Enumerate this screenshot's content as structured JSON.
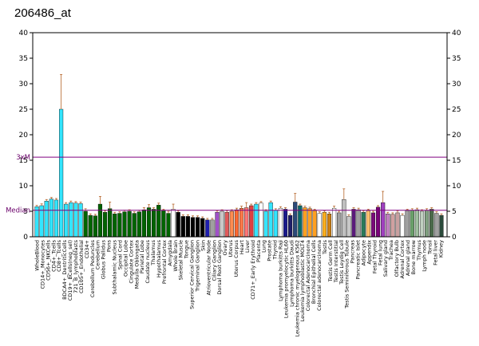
{
  "chart_data": {
    "type": "bar",
    "title": "206486_at",
    "ylim": [
      0,
      40
    ],
    "yticks": [
      0,
      5,
      10,
      15,
      20,
      25,
      30,
      35,
      40
    ],
    "reference_lines": [
      {
        "label": "3xM",
        "value": 15.6,
        "color": "#800080"
      },
      {
        "label": "Median",
        "value": 5.2,
        "color": "#800080"
      }
    ],
    "labeled_categories": [
      "WholeBlood",
      "CD14+_Monocytes",
      "CD56+_NKCells",
      "CD4+_Tcells",
      "CD8+_Tcells",
      "BDCA4+_DentriticCells",
      "CD19+_BCells(neg_sel)",
      "721_B_lymphoblasts",
      "CD105+_Endothelial",
      "CD34+",
      "Cerebellum Peduncles",
      "Cerebellum",
      "Globus Pallidus",
      "Pons",
      "Subthalamic Nucleus",
      "Spinal Cord",
      "Occipital Lobe",
      "Cingulate Cortex",
      "Medulla Oblongata",
      "Parietal Lobe",
      "Caudate nucleus",
      "Thalamus",
      "Hypothalamus",
      "Prefrontal Cortex",
      "Amygdala",
      "Whole Brain",
      "Skeletal Muscle",
      "Tongue",
      "Superior Cervical Ganglion",
      "Trigeminal Ganglion",
      "Skin",
      "Atrioventricular Node",
      "Ciliary Ganglion",
      "Dorsal Root Ganglion",
      "Ovary",
      "Uterus",
      "Uterus Corpus",
      "Heart",
      "Liver",
      "CD71+_Early Erythroid",
      "Placenta",
      "Lung",
      "Prostate",
      "Thyroid",
      "Lymphoma burkitts Raji",
      "Leukemia promyelocytic HL60",
      "Lymphoma burkitts Daudi",
      "Leukemia chronic myelogenous K562",
      "Leukemia lymphoblastic MOLT4",
      "Colorectal Adenocarcinoma",
      "Bronchial Epithelial Cells",
      "Colorectal adenocarcinoma",
      "Testis",
      "Testis Germ Cell",
      "Testis Interstitial",
      "Testis Leydig Cell",
      "Testis Seminiferous Tubule",
      "Pancreas",
      "Pancreatic Islet",
      "Adipocyte",
      "Appendix",
      "Fetal Thyroid",
      "Fetal lung",
      "Salivary gland",
      "Trachea",
      "Olfactory Bulb",
      "Adrenal Cortex",
      "Adrenal gland",
      "Bone marrow",
      "Thymus",
      "Lymph node",
      "Tonsil",
      "Fetal liver",
      "Kidney"
    ],
    "series": [
      {
        "values": [
          5.9,
          6.1,
          7.0,
          7.4,
          7.2,
          25.0,
          6.4,
          6.7,
          6.6,
          6.5,
          5.0,
          4.2,
          4.1,
          6.4,
          4.8,
          5.5,
          4.5,
          4.6,
          4.9,
          5.0,
          4.6,
          4.9,
          5.3,
          5.7,
          5.4,
          6.2,
          5.1,
          4.6,
          5.4,
          4.8,
          4.0,
          4.0,
          3.8,
          3.8,
          3.6,
          3.3,
          3.3,
          4.8,
          5.0,
          4.8,
          5.0,
          5.3,
          5.6,
          5.7,
          6.1,
          6.4,
          6.6,
          5.0,
          6.7,
          5.2,
          5.6,
          5.4,
          4.2,
          6.8,
          6.1,
          5.7,
          5.5,
          5.1,
          4.6,
          4.8,
          4.5,
          5.6,
          4.7,
          7.3,
          4.0,
          5.4,
          5.3,
          4.8,
          5.1,
          4.7,
          5.8,
          6.7,
          4.5,
          4.4,
          4.7,
          4.2,
          5.1,
          5.2,
          5.3,
          5.0,
          5.2,
          5.4,
          4.6,
          4.2
        ],
        "errors": [
          0.25,
          0.35,
          0.3,
          0.3,
          0.3,
          6.8,
          0.3,
          0.3,
          0.3,
          0.3,
          0.5,
          0.3,
          0.3,
          1.5,
          0.3,
          1.3,
          0.3,
          0.3,
          0.3,
          0.3,
          0.3,
          0.3,
          0.4,
          0.6,
          0.3,
          0.4,
          0.3,
          0.4,
          1.0,
          0.3,
          0.3,
          0.3,
          0.3,
          0.3,
          0.3,
          0.3,
          0.3,
          0.3,
          0.3,
          0.3,
          0.3,
          0.3,
          0.4,
          1.0,
          0.3,
          0.3,
          0.3,
          0.3,
          0.3,
          0.3,
          0.3,
          0.3,
          0.3,
          1.7,
          0.3,
          0.3,
          0.3,
          0.3,
          0.3,
          0.3,
          0.3,
          0.4,
          0.3,
          2.1,
          0.3,
          0.3,
          0.3,
          0.3,
          0.3,
          0.3,
          0.3,
          2.2,
          0.3,
          0.3,
          0.4,
          0.3,
          0.3,
          0.3,
          0.3,
          0.3,
          0.3,
          0.3,
          0.3,
          0.3
        ],
        "colors": [
          "#33e5ff",
          "#33e5ff",
          "#33e5ff",
          "#33e5ff",
          "#33e5ff",
          "#33e5ff",
          "#33e5ff",
          "#33e5ff",
          "#33e5ff",
          "#33e5ff",
          "#006400",
          "#006400",
          "#006400",
          "#006400",
          "#006400",
          "#006400",
          "#006400",
          "#006400",
          "#006400",
          "#006400",
          "#006400",
          "#006400",
          "#006400",
          "#006400",
          "#006400",
          "#006400",
          "#006400",
          "#006400",
          "#ffffff",
          "#000000",
          "#000000",
          "#000000",
          "#000000",
          "#000000",
          "#000000",
          "#1f1faf",
          "#a0a0a0",
          "#a050c8",
          "#c8c8c8",
          "#e05a5a",
          "#ff8c50",
          "#ff6a32",
          "#ff7a4a",
          "#ff7777",
          "#e04040",
          "#33e5ff",
          "#ffffff",
          "#33e5ff",
          "#33e5ff",
          "#33e5ff",
          "#ffffff",
          "#1a1a8c",
          "#1f1f6a",
          "#2c4a7a",
          "#0a6a6a",
          "#ffa020",
          "#ffa020",
          "#ffa020",
          "#ffffff",
          "#ffb020",
          "#d08010",
          "#ffffff",
          "#a0a0a0",
          "#c0c0c0",
          "#c8c8c8",
          "#5a1a7a",
          "#a0a0a0",
          "#2a7a5a",
          "#ffc070",
          "#7a0a7a",
          "#7a007a",
          "#a040c0",
          "#c080c0",
          "#d0a0a0",
          "#c8a0a0",
          "#ffffff",
          "#a0a0a0",
          "#6aa06a",
          "#a0c0a0",
          "#c0d0c0",
          "#80a080",
          "#4a6a4a",
          "#a0a0a0",
          "#2a4a3a"
        ]
      }
    ],
    "xlabel": "",
    "ylabel": "",
    "grid": false
  }
}
